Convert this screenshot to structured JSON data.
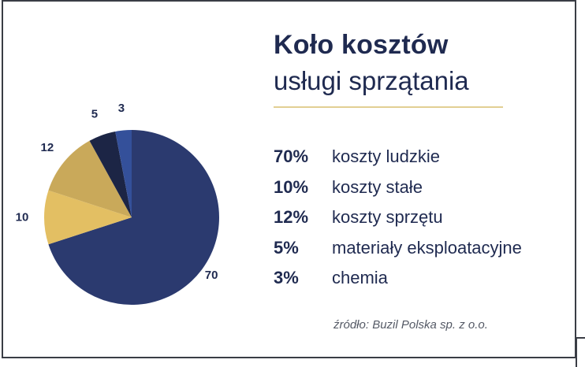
{
  "chart_data": {
    "type": "pie",
    "title": "Koło kosztów",
    "subtitle": "usługi sprzątania",
    "slices": [
      {
        "label": "koszty ludzkie",
        "value": 70,
        "pct_text": "70%",
        "color": "#2b3a6f"
      },
      {
        "label": "koszty stałe",
        "value": 10,
        "pct_text": "10%",
        "color": "#e3bf63"
      },
      {
        "label": "koszty sprzętu",
        "value": 12,
        "pct_text": "12%",
        "color": "#c9a95a"
      },
      {
        "label": "materiały eksploatacyjne",
        "value": 5,
        "pct_text": "5%",
        "color": "#1c2545"
      },
      {
        "label": "chemia",
        "value": 3,
        "pct_text": "3%",
        "color": "#34509a"
      }
    ],
    "source": "źródło: Buzil Polska sp. z o.o."
  }
}
